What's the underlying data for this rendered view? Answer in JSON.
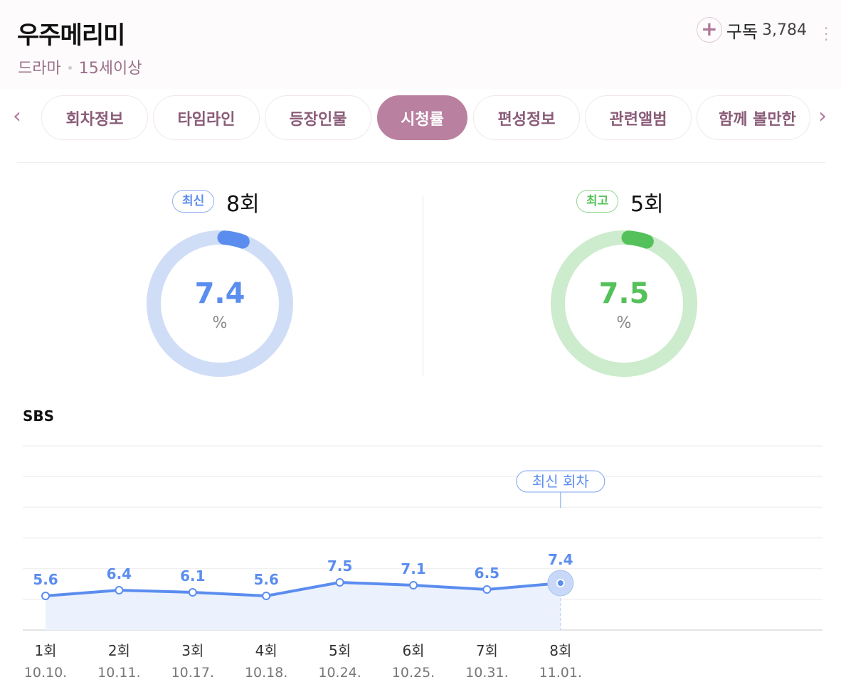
{
  "header": {
    "title": "우주메리미",
    "genre": "드라마",
    "rating": "15세이상",
    "subscribe_label": "구독",
    "subscribe_count": "3,784"
  },
  "tabs": [
    {
      "label": "회차정보"
    },
    {
      "label": "타임라인"
    },
    {
      "label": "등장인물"
    },
    {
      "label": "시청률",
      "active": true
    },
    {
      "label": "편성정보"
    },
    {
      "label": "관련앨범"
    },
    {
      "label": "함께 볼만한"
    }
  ],
  "summary": {
    "latest": {
      "badge": "최신",
      "episode": "8회",
      "value": "7.4",
      "unit": "%",
      "color": "#5b8def",
      "track": "#d0ddf7"
    },
    "best": {
      "badge": "최고",
      "episode": "5회",
      "value": "7.5",
      "unit": "%",
      "color": "#55c15a",
      "track": "#cdebcd"
    }
  },
  "chart_data": {
    "type": "line",
    "title": "SBS",
    "categories": [
      "1회",
      "2회",
      "3회",
      "4회",
      "5회",
      "6회",
      "7회",
      "8회"
    ],
    "dates": [
      "10.10.",
      "10.11.",
      "10.17.",
      "10.18.",
      "10.24.",
      "10.25.",
      "10.31.",
      "11.01."
    ],
    "values": [
      5.6,
      6.4,
      6.1,
      5.6,
      7.5,
      7.1,
      6.5,
      7.4
    ],
    "labels": [
      "5.6",
      "6.4",
      "6.1",
      "5.6",
      "7.5",
      "7.1",
      "6.5",
      "7.4"
    ],
    "ylim": [
      0.8,
      26.7
    ],
    "grid": true,
    "annotation": "최신 회차",
    "color": "#5b8def"
  }
}
